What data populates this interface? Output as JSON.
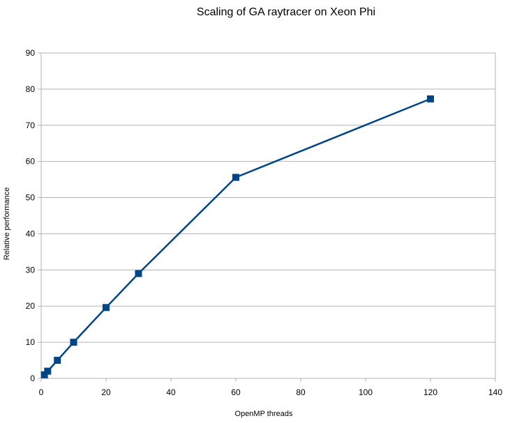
{
  "chart_data": {
    "type": "line",
    "title": "Scaling of GA raytracer on Xeon Phi",
    "xlabel": "OpenMP threads",
    "ylabel": "Relative performance",
    "xlim": [
      0,
      140
    ],
    "ylim": [
      0,
      90
    ],
    "xticks": [
      0,
      20,
      40,
      60,
      80,
      100,
      120,
      140
    ],
    "yticks": [
      0,
      10,
      20,
      30,
      40,
      50,
      60,
      70,
      80,
      90
    ],
    "grid": true,
    "legend": "none",
    "series": [
      {
        "x": [
          1,
          2,
          5,
          10,
          20,
          30,
          60,
          120
        ],
        "y": [
          1,
          2,
          5,
          10,
          19.6,
          29,
          55.6,
          77.3
        ],
        "color": "#004586",
        "marker": "square"
      }
    ]
  }
}
